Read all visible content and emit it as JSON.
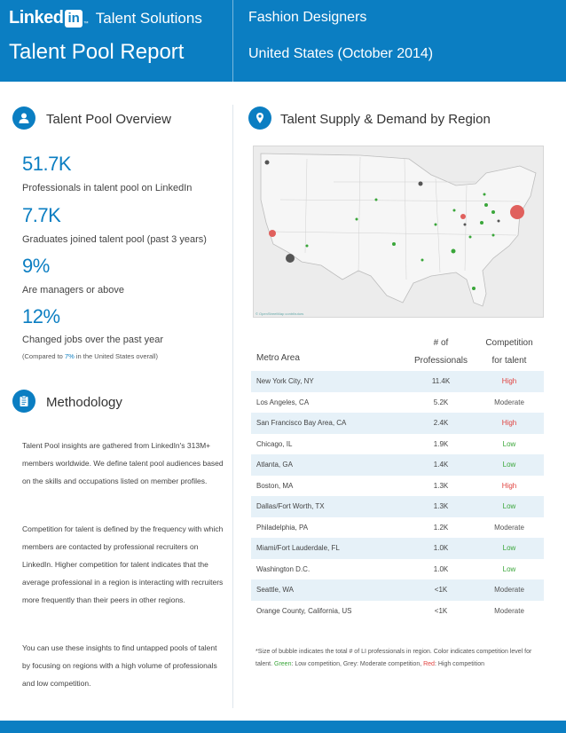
{
  "header": {
    "logo_linked": "Linked",
    "logo_in": "in",
    "logo_tm": "™",
    "product": "Talent Solutions",
    "report_title": "Talent Pool Report",
    "occupation": "Fashion Designers",
    "region": "United States (October 2014)"
  },
  "colors": {
    "brand": "#0b7ec2",
    "low": "#3aa63a",
    "moderate": "#555555",
    "high": "#e0423f",
    "row_alt": "#e6f1f8"
  },
  "overview": {
    "icon": "person-icon",
    "title": "Talent Pool Overview",
    "stats": [
      {
        "value": "51.7K",
        "label": "Professionals in talent pool on LinkedIn"
      },
      {
        "value": "7.7K",
        "label": "Graduates joined talent pool (past 3 years)"
      },
      {
        "value": "9%",
        "label": "Are managers or above"
      },
      {
        "value": "12%",
        "label": "Changed jobs over the past year"
      }
    ],
    "note_prefix": "(Compared to ",
    "note_highlight": "7%",
    "note_suffix": " in the United States overall)"
  },
  "methodology": {
    "icon": "clipboard-icon",
    "title": "Methodology",
    "paragraphs": [
      "Talent Pool insights are gathered from LinkedIn's 313M+ members worldwide. We define talent pool audiences based on the skills and occupations listed on member profiles.",
      "Competition for talent is defined by the frequency with which members are contacted by professional recruiters on LinkedIn. Higher competition for talent indicates that the average professional in a region is interacting with recruiters more frequently than their peers in other regions.",
      "You can use these insights to find untapped pools of talent by focusing on regions with a high volume of professionals and low competition."
    ]
  },
  "supply_demand": {
    "icon": "map-pin-icon",
    "title": "Talent Supply & Demand by Region",
    "map_credit": "© OpenStreetMap contributors",
    "table": {
      "col_metro": "Metro Area",
      "col_num_1": "# of",
      "col_num_2": "Professionals",
      "col_comp_1": "Competition",
      "col_comp_2": "for talent",
      "rows": [
        {
          "metro": "New York City, NY",
          "num": "11.4K",
          "comp": "High"
        },
        {
          "metro": "Los Angeles, CA",
          "num": "5.2K",
          "comp": "Moderate"
        },
        {
          "metro": "San Francisco Bay Area, CA",
          "num": "2.4K",
          "comp": "High"
        },
        {
          "metro": "Chicago, IL",
          "num": "1.9K",
          "comp": "Low"
        },
        {
          "metro": "Atlanta, GA",
          "num": "1.4K",
          "comp": "Low"
        },
        {
          "metro": "Boston, MA",
          "num": "1.3K",
          "comp": "High"
        },
        {
          "metro": "Dallas/Fort Worth, TX",
          "num": "1.3K",
          "comp": "Low"
        },
        {
          "metro": "Philadelphia, PA",
          "num": "1.2K",
          "comp": "Moderate"
        },
        {
          "metro": "Miami/Fort Lauderdale, FL",
          "num": "1.0K",
          "comp": "Low"
        },
        {
          "metro": "Washington D.C.",
          "num": "1.0K",
          "comp": "Low"
        },
        {
          "metro": "Seattle, WA",
          "num": "<1K",
          "comp": "Moderate"
        },
        {
          "metro": "Orange County, California, US",
          "num": "<1K",
          "comp": "Moderate"
        }
      ]
    },
    "footnote": {
      "part1": "*Size of bubble indicates the total # of LI professionals in region. Color indicates competition level for talent. ",
      "green": "Green",
      "part2": ": Low competition, Grey: Moderate competition, ",
      "red": "Red",
      "part3": ": High competition"
    }
  }
}
